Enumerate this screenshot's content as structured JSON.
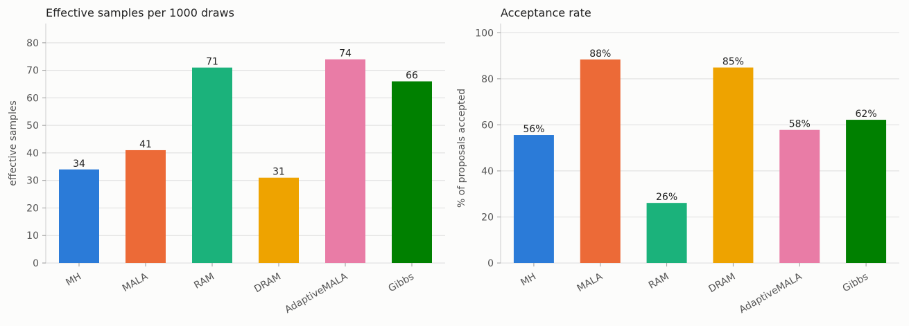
{
  "chart_data": [
    {
      "type": "bar",
      "title": "Effective samples per 1000 draws",
      "xlabel": "",
      "ylabel": "effective samples",
      "categories": [
        "MH",
        "MALA",
        "RAM",
        "DRAM",
        "AdaptiveMALA",
        "Gibbs"
      ],
      "values": [
        34,
        41,
        71,
        31,
        74,
        66
      ],
      "data_labels": [
        "34",
        "41",
        "71",
        "31",
        "74",
        "66"
      ],
      "ylim": [
        0,
        87
      ],
      "yticks": [
        0,
        10,
        20,
        30,
        40,
        50,
        60,
        70,
        80
      ],
      "ytick_labels": [
        "0",
        "10",
        "20",
        "30",
        "40",
        "50",
        "60",
        "70",
        "80"
      ],
      "grid": true,
      "legend": "none",
      "colors": [
        "#2b7bd8",
        "#ec6a37",
        "#1bb27b",
        "#eea300",
        "#e97ca6",
        "#008000"
      ]
    },
    {
      "type": "bar",
      "title": "Acceptance rate",
      "xlabel": "",
      "ylabel": "% of proposals accepted",
      "categories": [
        "MH",
        "MALA",
        "RAM",
        "DRAM",
        "AdaptiveMALA",
        "Gibbs"
      ],
      "values": [
        55.6,
        88.4,
        26.1,
        84.9,
        57.8,
        62.2
      ],
      "data_labels": [
        "56%",
        "88%",
        "26%",
        "85%",
        "58%",
        "62%"
      ],
      "ylim": [
        0,
        104
      ],
      "yticks": [
        0,
        20,
        40,
        60,
        80,
        100
      ],
      "ytick_labels": [
        "0",
        "20",
        "40",
        "60",
        "80",
        "100"
      ],
      "grid": true,
      "legend": "none",
      "colors": [
        "#2b7bd8",
        "#ec6a37",
        "#1bb27b",
        "#eea300",
        "#e97ca6",
        "#008000"
      ]
    }
  ]
}
